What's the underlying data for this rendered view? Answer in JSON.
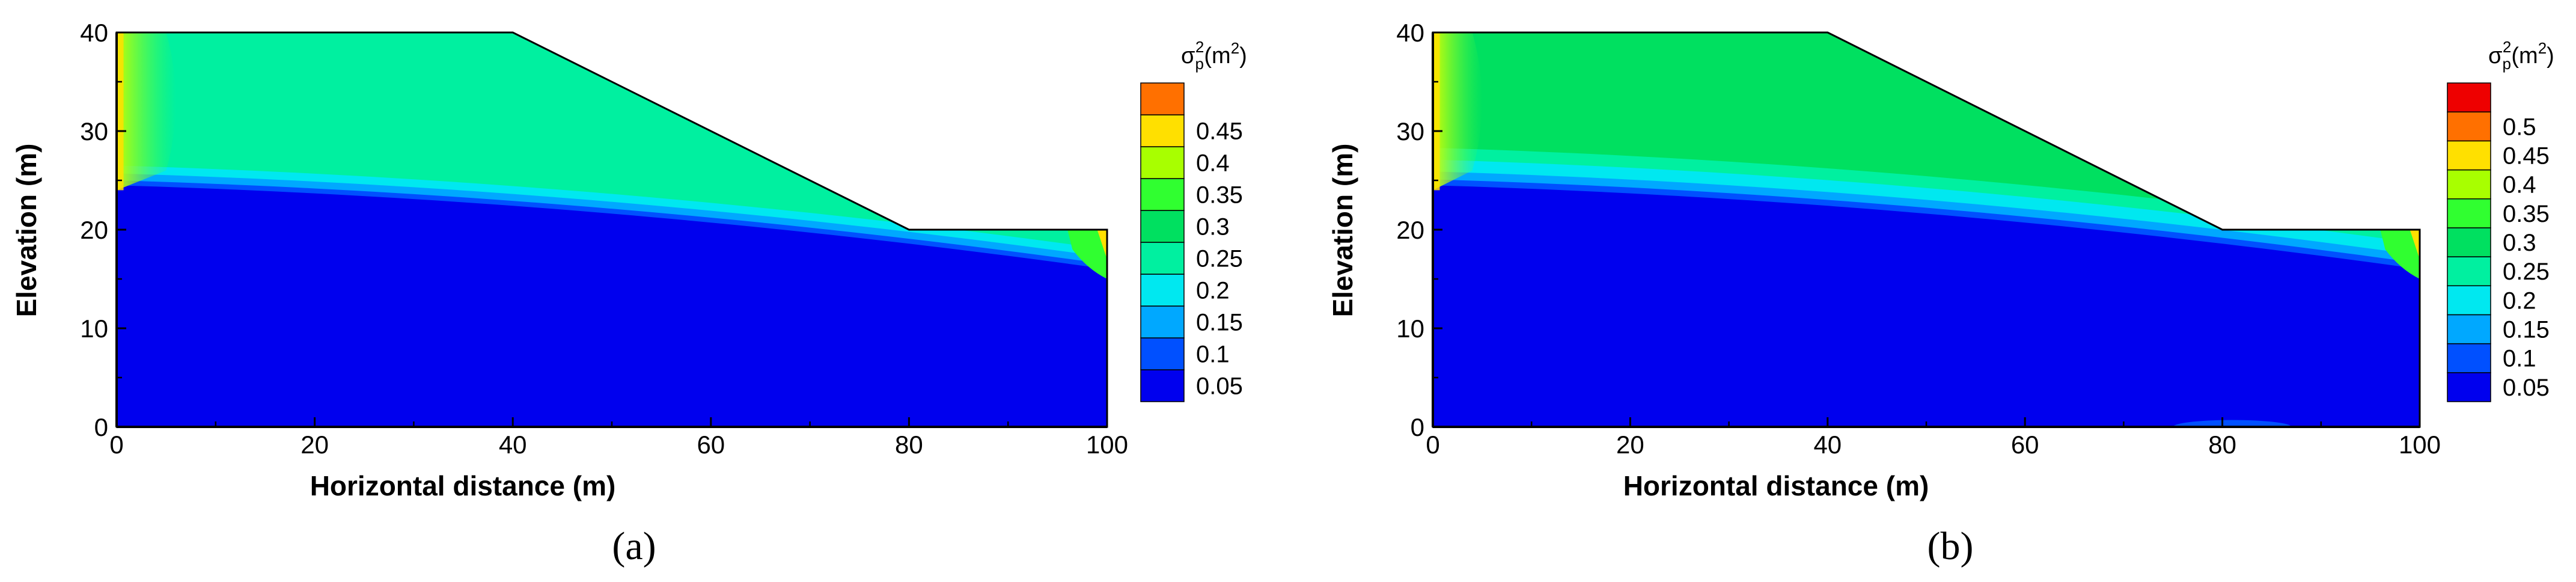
{
  "chart_data": [
    {
      "panel": "(a)",
      "type": "heatmap",
      "xlabel": "Horizontal distance (m)",
      "ylabel": "Elevation (m)",
      "xlim": [
        0,
        100
      ],
      "ylim": [
        0,
        40
      ],
      "x_ticks": [
        "0",
        "20",
        "40",
        "60",
        "80",
        "100"
      ],
      "y_ticks": [
        "0",
        "10",
        "20",
        "30",
        "40"
      ],
      "legend_title": "σp²(m²)",
      "legend_title_main": "σ",
      "legend_title_sup": "2",
      "legend_title_sub": "p",
      "legend_title_unit": "(m",
      "legend_title_unit_sup": "2",
      "legend_title_close": ")",
      "legend_levels": [
        "0.05",
        "0.1",
        "0.15",
        "0.2",
        "0.25",
        "0.3",
        "0.35",
        "0.4",
        "0.45"
      ],
      "slope_geometry": [
        [
          0,
          40
        ],
        [
          40,
          40
        ],
        [
          80,
          20
        ],
        [
          100,
          20
        ],
        [
          100,
          0
        ],
        [
          0,
          0
        ]
      ],
      "zones": [
        {
          "level": "0.2",
          "desc": "upper region",
          "color": "#00f0a0"
        },
        {
          "level": "0.05",
          "desc": "lower region",
          "color": "#0000ee"
        }
      ]
    },
    {
      "panel": "(b)",
      "type": "heatmap",
      "xlabel": "Horizontal distance (m)",
      "ylabel": "Elevation (m)",
      "xlim": [
        0,
        100
      ],
      "ylim": [
        0,
        40
      ],
      "x_ticks": [
        "0",
        "20",
        "40",
        "60",
        "80",
        "100"
      ],
      "y_ticks": [
        "0",
        "10",
        "20",
        "30",
        "40"
      ],
      "legend_title": "σp²(m²)",
      "legend_title_main": "σ",
      "legend_title_sup": "2",
      "legend_title_sub": "p",
      "legend_title_unit": "(m",
      "legend_title_unit_sup": "2",
      "legend_title_close": ")",
      "legend_levels": [
        "0.05",
        "0.1",
        "0.15",
        "0.2",
        "0.25",
        "0.3",
        "0.35",
        "0.4",
        "0.45",
        "0.5"
      ],
      "slope_geometry": [
        [
          0,
          40
        ],
        [
          40,
          40
        ],
        [
          80,
          20
        ],
        [
          100,
          20
        ],
        [
          100,
          0
        ],
        [
          0,
          0
        ]
      ],
      "zones": [
        {
          "level": "0.25",
          "desc": "upper region",
          "color": "#00e060"
        },
        {
          "level": "0.05",
          "desc": "lower region",
          "color": "#0000ee"
        }
      ]
    }
  ],
  "colors": {
    "deep_blue": "#0000ee",
    "mid_blue": "#0050ff",
    "light_blue": "#00a8ff",
    "cyan": "#00e8f0",
    "aqua_green": "#00f0a0",
    "green": "#00e060",
    "lime": "#30ff30",
    "yellow_green": "#a8ff00",
    "yellow": "#ffe000",
    "orange": "#ff7000",
    "red": "#ee0000"
  }
}
